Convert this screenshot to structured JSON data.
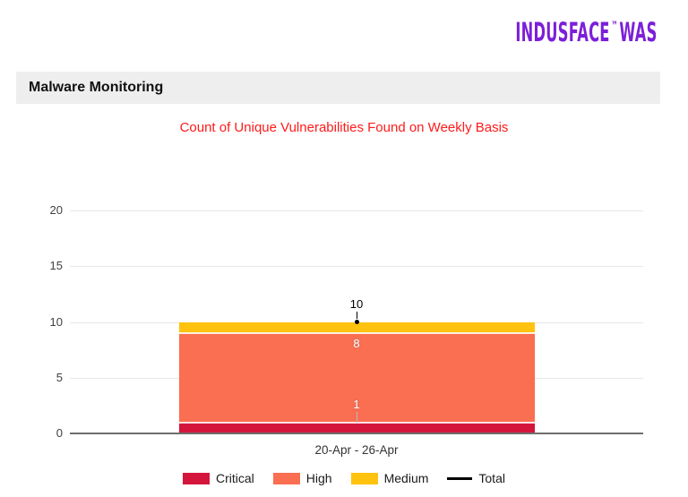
{
  "logo": {
    "name": "INDUSFACE",
    "tm": "™",
    "product": "WAS",
    "color": "#7c1fd9"
  },
  "header": {
    "title": "Malware Monitoring"
  },
  "chart_data": {
    "type": "bar",
    "stacked": true,
    "title": "Count of Unique Vulnerabilities Found on Weekly Basis",
    "title_color": "#ff1a1a",
    "categories": [
      "20-Apr - 26-Apr"
    ],
    "series": [
      {
        "name": "Critical",
        "values": [
          1
        ],
        "color": "#d4163c",
        "label_mode": "callout"
      },
      {
        "name": "High",
        "values": [
          8
        ],
        "color": "#fa6e51",
        "label_mode": "inline"
      },
      {
        "name": "Medium",
        "values": [
          1
        ],
        "color": "#ffc20e",
        "label_mode": "none"
      }
    ],
    "total_series": {
      "name": "Total",
      "values": [
        10
      ],
      "color": "#000000",
      "marker": "dot"
    },
    "ylim": [
      0,
      20
    ],
    "yticks": [
      0,
      5,
      10,
      15,
      20
    ],
    "grid": true,
    "legend_position": "bottom",
    "xlabel": "",
    "ylabel": ""
  }
}
